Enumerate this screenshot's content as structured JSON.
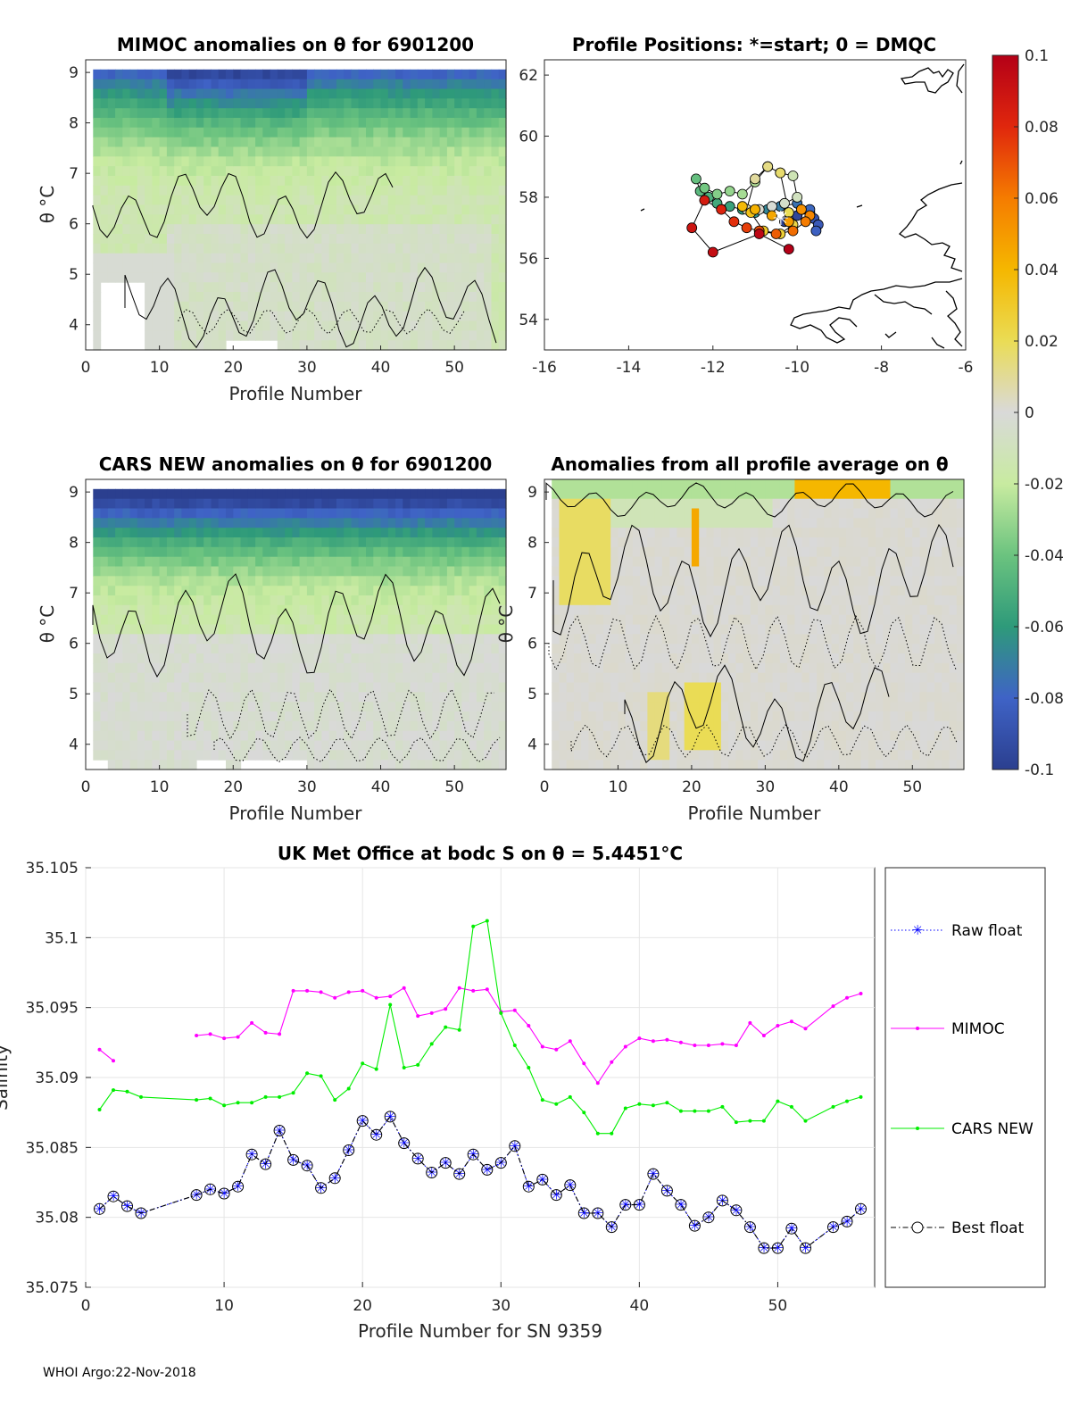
{
  "footer": "WHOI Argo:22-Nov-2018",
  "panels": {
    "mimoc": {
      "title": "MIMOC anomalies on θ  for 6901200",
      "xlabel": "Profile Number",
      "ylabel": "θ °C",
      "xticks": [
        "0",
        "10",
        "20",
        "30",
        "40",
        "50"
      ],
      "yticks": [
        "4",
        "5",
        "6",
        "7",
        "8",
        "9"
      ]
    },
    "positions": {
      "title": "Profile Positions: *=start; 0 = DMQC",
      "xticks": [
        "-16",
        "-14",
        "-12",
        "-10",
        "-8",
        "-6"
      ],
      "yticks": [
        "54",
        "56",
        "58",
        "60",
        "62"
      ]
    },
    "cars": {
      "title": "CARS NEW anomalies on θ for 6901200",
      "xlabel": "Profile Number",
      "ylabel": "θ °C",
      "xticks": [
        "0",
        "10",
        "20",
        "30",
        "40",
        "50"
      ],
      "yticks": [
        "4",
        "5",
        "6",
        "7",
        "8",
        "9"
      ]
    },
    "avg": {
      "title": "Anomalies from all profile average on θ",
      "xlabel": "Profile Number",
      "ylabel": "θ °C",
      "xticks": [
        "0",
        "10",
        "20",
        "30",
        "40",
        "50"
      ],
      "yticks": [
        "4",
        "5",
        "6",
        "7",
        "8",
        "9"
      ]
    }
  },
  "colorbar": {
    "ticks": [
      "0.1",
      "0.08",
      "0.06",
      "0.04",
      "0.02",
      "0",
      "-0.02",
      "-0.04",
      "-0.06",
      "-0.08",
      "-0.1"
    ],
    "colors": {
      "top": "#c0001c",
      "orange": "#f57c00",
      "yellow": "#f2d50c",
      "zero": "#d9d9d9",
      "lightgreen": "#c8eba0",
      "green": "#3aa36b",
      "blue": "#3f63c6",
      "bottom": "#2b3f8f"
    }
  },
  "chart_data": [
    {
      "type": "heatmap",
      "title": "MIMOC anomalies on θ  for 6901200",
      "xlabel": "Profile Number",
      "ylabel": "θ °C",
      "xlim": [
        0,
        57
      ],
      "ylim": [
        3.5,
        9.25
      ],
      "clim": [
        -0.1,
        0.1
      ]
    },
    {
      "type": "scatter",
      "title": "Profile Positions: *=start; 0 = DMQC",
      "xlim": [
        -16,
        -6
      ],
      "ylim": [
        53,
        62.5
      ],
      "lon": [
        -10.3,
        -10.0,
        -9.7,
        -9.6,
        -9.5,
        -9.55,
        -9.7,
        -10.0,
        -10.4,
        -10.7,
        -11.0,
        -11.3,
        -11.6,
        -11.9,
        -12.1,
        -12.3,
        -12.4,
        -12.2,
        -11.9,
        -11.6,
        -11.3,
        -11.0,
        -10.7,
        -10.4,
        -10.1,
        -10.0,
        -10.3,
        -10.6,
        -10.9,
        -11.2,
        -11.0,
        -10.7,
        -10.4,
        -10.2,
        -10.1,
        -10.4,
        -10.8,
        -11.1,
        -11.3,
        -11.0,
        -10.6,
        -10.2,
        -9.9,
        -9.7,
        -9.8,
        -10.1,
        -10.5,
        -10.9,
        -11.2,
        -11.5,
        -11.8,
        -12.2,
        -12.5,
        -12.0,
        -10.9,
        -10.2
      ],
      "lat": [
        57.2,
        57.4,
        57.5,
        57.3,
        57.1,
        56.9,
        57.6,
        57.8,
        57.7,
        57.6,
        57.5,
        57.6,
        57.7,
        57.8,
        58.0,
        58.2,
        58.6,
        58.3,
        58.1,
        58.2,
        58.1,
        58.5,
        59.0,
        58.8,
        58.7,
        58.0,
        57.8,
        57.7,
        57.6,
        57.6,
        58.6,
        59.0,
        58.8,
        57.5,
        57.1,
        56.8,
        56.9,
        57.5,
        57.7,
        57.6,
        57.4,
        57.2,
        57.6,
        57.4,
        57.2,
        56.9,
        56.8,
        56.9,
        57.0,
        57.2,
        57.6,
        57.9,
        57.0,
        56.2,
        56.8,
        56.3
      ],
      "start": [
        -10.3,
        57.2
      ]
    },
    {
      "type": "heatmap",
      "title": "CARS NEW anomalies on θ for 6901200",
      "xlabel": "Profile Number",
      "ylabel": "θ °C",
      "xlim": [
        0,
        57
      ],
      "ylim": [
        3.5,
        9.25
      ],
      "clim": [
        -0.1,
        0.1
      ]
    },
    {
      "type": "heatmap",
      "title": "Anomalies from all profile average on θ",
      "xlabel": "Profile Number",
      "ylabel": "θ °C",
      "xlim": [
        0,
        57
      ],
      "ylim": [
        3.5,
        9.25
      ],
      "clim": [
        -0.1,
        0.1
      ]
    },
    {
      "type": "line",
      "title": "UK Met Office at bodc S on θ = 5.4451°C",
      "xlabel": "Profile Number for SN 9359",
      "ylabel": "Salinity",
      "xlim": [
        0,
        57
      ],
      "ylim": [
        35.075,
        35.105
      ],
      "yticks": [
        "35.075",
        "35.08",
        "35.085",
        "35.09",
        "35.095",
        "35.1",
        "35.105"
      ],
      "xticks": [
        "0",
        "10",
        "20",
        "30",
        "40",
        "50"
      ],
      "legend_position": "outside-right",
      "series": [
        {
          "name": "Raw float",
          "color": "#0000ff",
          "style": "dotted-star",
          "x": [
            1,
            2,
            3,
            4,
            8,
            9,
            10,
            11,
            12,
            13,
            14,
            15,
            16,
            17,
            18,
            19,
            20,
            21,
            22,
            23,
            24,
            25,
            26,
            27,
            28,
            29,
            30,
            31,
            32,
            33,
            34,
            35,
            36,
            37,
            38,
            39,
            40,
            41,
            42,
            43,
            44,
            45,
            46,
            47,
            48,
            49,
            50,
            51,
            52,
            54,
            55,
            56
          ],
          "y": [
            35.0806,
            35.0815,
            35.0808,
            35.0803,
            35.0816,
            35.082,
            35.0817,
            35.0822,
            35.0845,
            35.0838,
            35.0862,
            35.0841,
            35.0837,
            35.0821,
            35.0828,
            35.0848,
            35.0869,
            35.0859,
            35.0872,
            35.0853,
            35.0842,
            35.0832,
            35.0839,
            35.0831,
            35.0845,
            35.0834,
            35.0839,
            35.0851,
            35.0822,
            35.0827,
            35.0816,
            35.0823,
            35.0803,
            35.0803,
            35.0793,
            35.0809,
            35.0809,
            35.0831,
            35.0819,
            35.0809,
            35.0794,
            35.08,
            35.0812,
            35.0805,
            35.0793,
            35.0778,
            35.0778,
            35.0792,
            35.0778,
            35.0793,
            35.0797,
            35.0806
          ]
        },
        {
          "name": "MIMOC",
          "color": "#ff00ff",
          "style": "solid-dot",
          "x": [
            1,
            2,
            null,
            8,
            9,
            10,
            11,
            12,
            13,
            14,
            15,
            16,
            17,
            18,
            19,
            20,
            21,
            22,
            23,
            24,
            25,
            26,
            27,
            28,
            29,
            30,
            31,
            32,
            33,
            34,
            35,
            36,
            37,
            38,
            39,
            40,
            41,
            42,
            43,
            44,
            45,
            46,
            47,
            48,
            49,
            50,
            51,
            52,
            54,
            55,
            56
          ],
          "y": [
            35.092,
            35.0912,
            null,
            35.093,
            35.0931,
            35.0928,
            35.0929,
            35.0939,
            35.0932,
            35.0931,
            35.0962,
            35.0962,
            35.0961,
            35.0957,
            35.0961,
            35.0962,
            35.0957,
            35.0958,
            35.0964,
            35.0944,
            35.0946,
            35.0949,
            35.0964,
            35.0962,
            35.0963,
            35.0947,
            35.0948,
            35.0937,
            35.0922,
            35.092,
            35.0926,
            35.091,
            35.0896,
            35.0911,
            35.0922,
            35.0928,
            35.0926,
            35.0927,
            35.0925,
            35.0923,
            35.0923,
            35.0924,
            35.0923,
            35.0939,
            35.093,
            35.0937,
            35.094,
            35.0935,
            35.0951,
            35.0957,
            35.096
          ]
        },
        {
          "name": "CARS NEW",
          "color": "#00ee00",
          "style": "solid-dot",
          "x": [
            1,
            2,
            3,
            4,
            8,
            9,
            10,
            11,
            12,
            13,
            14,
            15,
            16,
            17,
            18,
            19,
            20,
            21,
            22,
            23,
            24,
            25,
            26,
            27,
            28,
            29,
            30,
            31,
            32,
            33,
            34,
            35,
            36,
            37,
            38,
            39,
            40,
            41,
            42,
            43,
            44,
            45,
            46,
            47,
            48,
            49,
            50,
            51,
            52,
            54,
            55,
            56
          ],
          "y": [
            35.0877,
            35.0891,
            35.089,
            35.0886,
            35.0884,
            35.0885,
            35.088,
            35.0882,
            35.0882,
            35.0886,
            35.0886,
            35.0889,
            35.0903,
            35.0901,
            35.0884,
            35.0892,
            35.091,
            35.0906,
            35.0952,
            35.0907,
            35.0909,
            35.0924,
            35.0936,
            35.0934,
            35.1008,
            35.1012,
            35.0946,
            35.0923,
            35.0907,
            35.0884,
            35.0881,
            35.0886,
            35.0875,
            35.086,
            35.086,
            35.0878,
            35.0881,
            35.088,
            35.0882,
            35.0876,
            35.0876,
            35.0876,
            35.0879,
            35.0868,
            35.0869,
            35.0869,
            35.0883,
            35.0879,
            35.0869,
            35.0879,
            35.0883,
            35.0886
          ]
        },
        {
          "name": "Best float",
          "color": "#000000",
          "style": "dashdot-circle",
          "x": [
            1,
            2,
            3,
            4,
            8,
            9,
            10,
            11,
            12,
            13,
            14,
            15,
            16,
            17,
            18,
            19,
            20,
            21,
            22,
            23,
            24,
            25,
            26,
            27,
            28,
            29,
            30,
            31,
            32,
            33,
            34,
            35,
            36,
            37,
            38,
            39,
            40,
            41,
            42,
            43,
            44,
            45,
            46,
            47,
            48,
            49,
            50,
            51,
            52,
            54,
            55,
            56
          ],
          "y": [
            35.0806,
            35.0815,
            35.0808,
            35.0803,
            35.0816,
            35.082,
            35.0817,
            35.0822,
            35.0845,
            35.0838,
            35.0862,
            35.0841,
            35.0837,
            35.0821,
            35.0828,
            35.0848,
            35.0869,
            35.0859,
            35.0872,
            35.0853,
            35.0842,
            35.0832,
            35.0839,
            35.0831,
            35.0845,
            35.0834,
            35.0839,
            35.0851,
            35.0822,
            35.0827,
            35.0816,
            35.0823,
            35.0803,
            35.0803,
            35.0793,
            35.0809,
            35.0809,
            35.0831,
            35.0819,
            35.0809,
            35.0794,
            35.08,
            35.0812,
            35.0805,
            35.0793,
            35.0778,
            35.0778,
            35.0792,
            35.0778,
            35.0793,
            35.0797,
            35.0806
          ]
        }
      ]
    }
  ]
}
